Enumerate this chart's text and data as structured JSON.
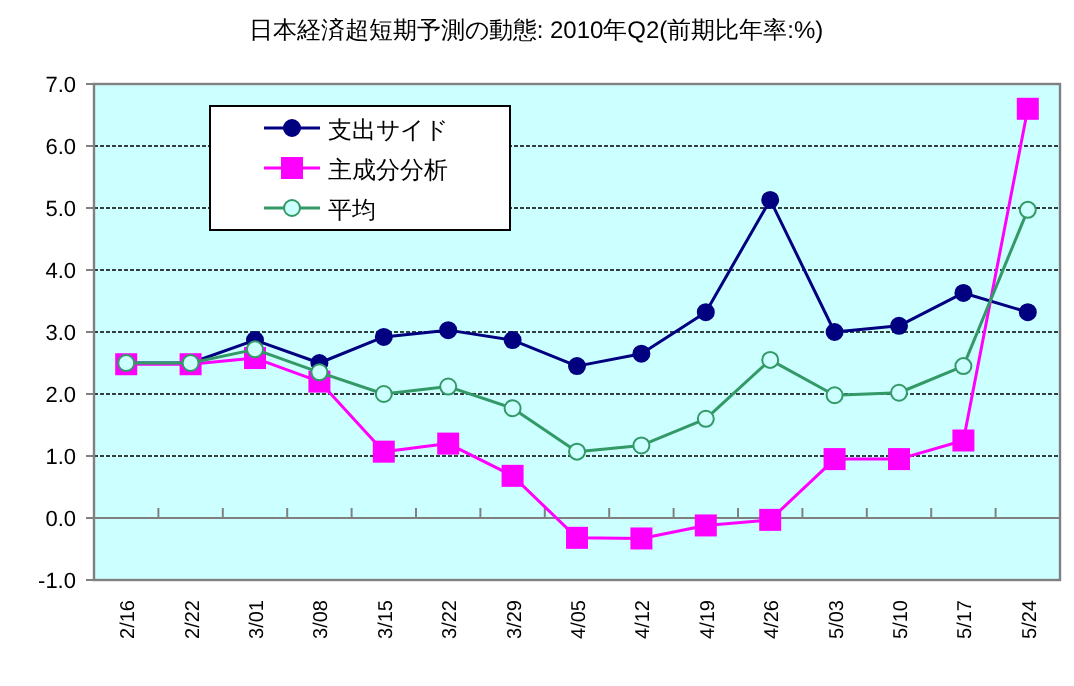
{
  "chart_data": {
    "type": "line",
    "title": "日本経済超短期予測の動態: 2010年Q2(前期比年率:%)",
    "categories": [
      "2/16",
      "2/22",
      "3/01",
      "3/08",
      "3/15",
      "3/22",
      "3/29",
      "4/05",
      "4/12",
      "4/19",
      "4/26",
      "5/03",
      "5/10",
      "5/17",
      "5/24"
    ],
    "series": [
      {
        "name": "支出サイド",
        "color": "#000080",
        "marker": "circle",
        "values": [
          2.5,
          2.5,
          2.87,
          2.5,
          2.92,
          3.03,
          2.87,
          2.45,
          2.65,
          3.32,
          5.13,
          3.0,
          3.1,
          3.63,
          3.32
        ]
      },
      {
        "name": "主成分分析",
        "color": "#ff00ff",
        "marker": "square",
        "values": [
          2.48,
          2.48,
          2.58,
          2.2,
          1.07,
          1.2,
          0.68,
          -0.32,
          -0.33,
          -0.12,
          -0.03,
          0.95,
          0.95,
          1.25,
          6.6
        ]
      },
      {
        "name": "平均",
        "color": "#339966",
        "marker": "open circle",
        "values": [
          2.5,
          2.5,
          2.72,
          2.35,
          2.0,
          2.12,
          1.77,
          1.07,
          1.17,
          1.6,
          2.55,
          1.98,
          2.02,
          2.45,
          4.97
        ]
      }
    ],
    "ylim": [
      -1,
      7
    ],
    "yticks": [
      {
        "value": -1,
        "label": "-1.0"
      },
      {
        "value": 0,
        "label": "0.0"
      },
      {
        "value": 1,
        "label": "1.0"
      },
      {
        "value": 2,
        "label": "2.0"
      },
      {
        "value": 3,
        "label": "3.0"
      },
      {
        "value": 4,
        "label": "4.0"
      },
      {
        "value": 5,
        "label": "5.0"
      },
      {
        "value": 6,
        "label": "6.0"
      },
      {
        "value": 7,
        "label": "7.0"
      }
    ],
    "grid": "y",
    "legend": "top left"
  }
}
